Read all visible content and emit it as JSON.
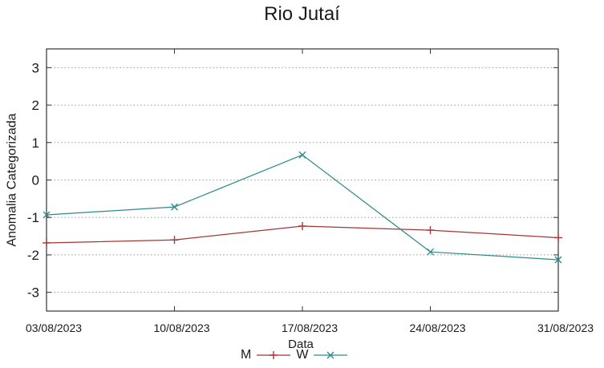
{
  "chart_data": {
    "type": "line",
    "title": "Rio Jutaí",
    "xlabel": "Data",
    "ylabel": "Anomalia Categorizada",
    "categories": [
      "03/08/2023",
      "10/08/2023",
      "17/08/2023",
      "24/08/2023",
      "31/08/2023"
    ],
    "series": [
      {
        "name": "M",
        "color": "#a83434",
        "marker": "plus",
        "values": [
          -1.68,
          -1.6,
          -1.23,
          -1.34,
          -1.54
        ]
      },
      {
        "name": "W",
        "color": "#2e8b8b",
        "marker": "cross",
        "values": [
          -0.93,
          -0.72,
          0.67,
          -1.92,
          -2.13
        ]
      }
    ],
    "ylim": [
      -3.5,
      3.5
    ],
    "yticks": [
      3,
      2,
      1,
      0,
      -1,
      -2,
      -3
    ],
    "grid": "horizontal-dashed",
    "legend_position": "below",
    "colors": {
      "axis": "#333333",
      "gridline": "#999999",
      "text": "#1a1a1a"
    }
  }
}
